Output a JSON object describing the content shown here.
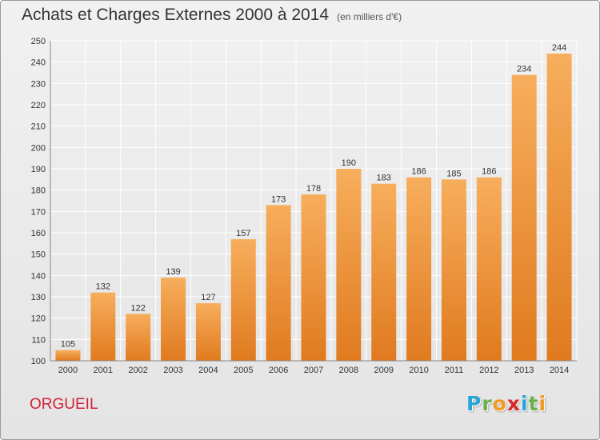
{
  "header": {
    "title": "Achats et Charges Externes 2000 à 2014",
    "subtitle": "(en milliers d'€)"
  },
  "footer": {
    "town": "ORGUEIL",
    "logo_letters": [
      "P",
      "r",
      "o",
      "x",
      "i",
      "t",
      "i"
    ],
    "logo_colors": [
      "#2aa3d8",
      "#6ab04c",
      "#f29a1f",
      "#d9262b",
      "#2aa3d8",
      "#6ab04c",
      "#f29a1f"
    ]
  },
  "colors": {
    "bar_light": "#f7ae5c",
    "bar_dark": "#e07a1f",
    "grid": "#ffffff",
    "axis_text": "#333333"
  },
  "chart_data": {
    "type": "bar",
    "title": "Achats et Charges Externes 2000 à 2014",
    "subtitle": "(en milliers d'€)",
    "categories": [
      "2000",
      "2001",
      "2002",
      "2003",
      "2004",
      "2005",
      "2006",
      "2007",
      "2008",
      "2009",
      "2010",
      "2011",
      "2012",
      "2013",
      "2014"
    ],
    "values": [
      105,
      132,
      122,
      139,
      127,
      157,
      173,
      178,
      190,
      183,
      186,
      185,
      186,
      234,
      244
    ],
    "ylim": [
      100,
      250
    ],
    "yticks": [
      100,
      110,
      120,
      130,
      140,
      150,
      160,
      170,
      180,
      190,
      200,
      210,
      220,
      230,
      240,
      250
    ],
    "grid": true,
    "data_labels": true
  }
}
